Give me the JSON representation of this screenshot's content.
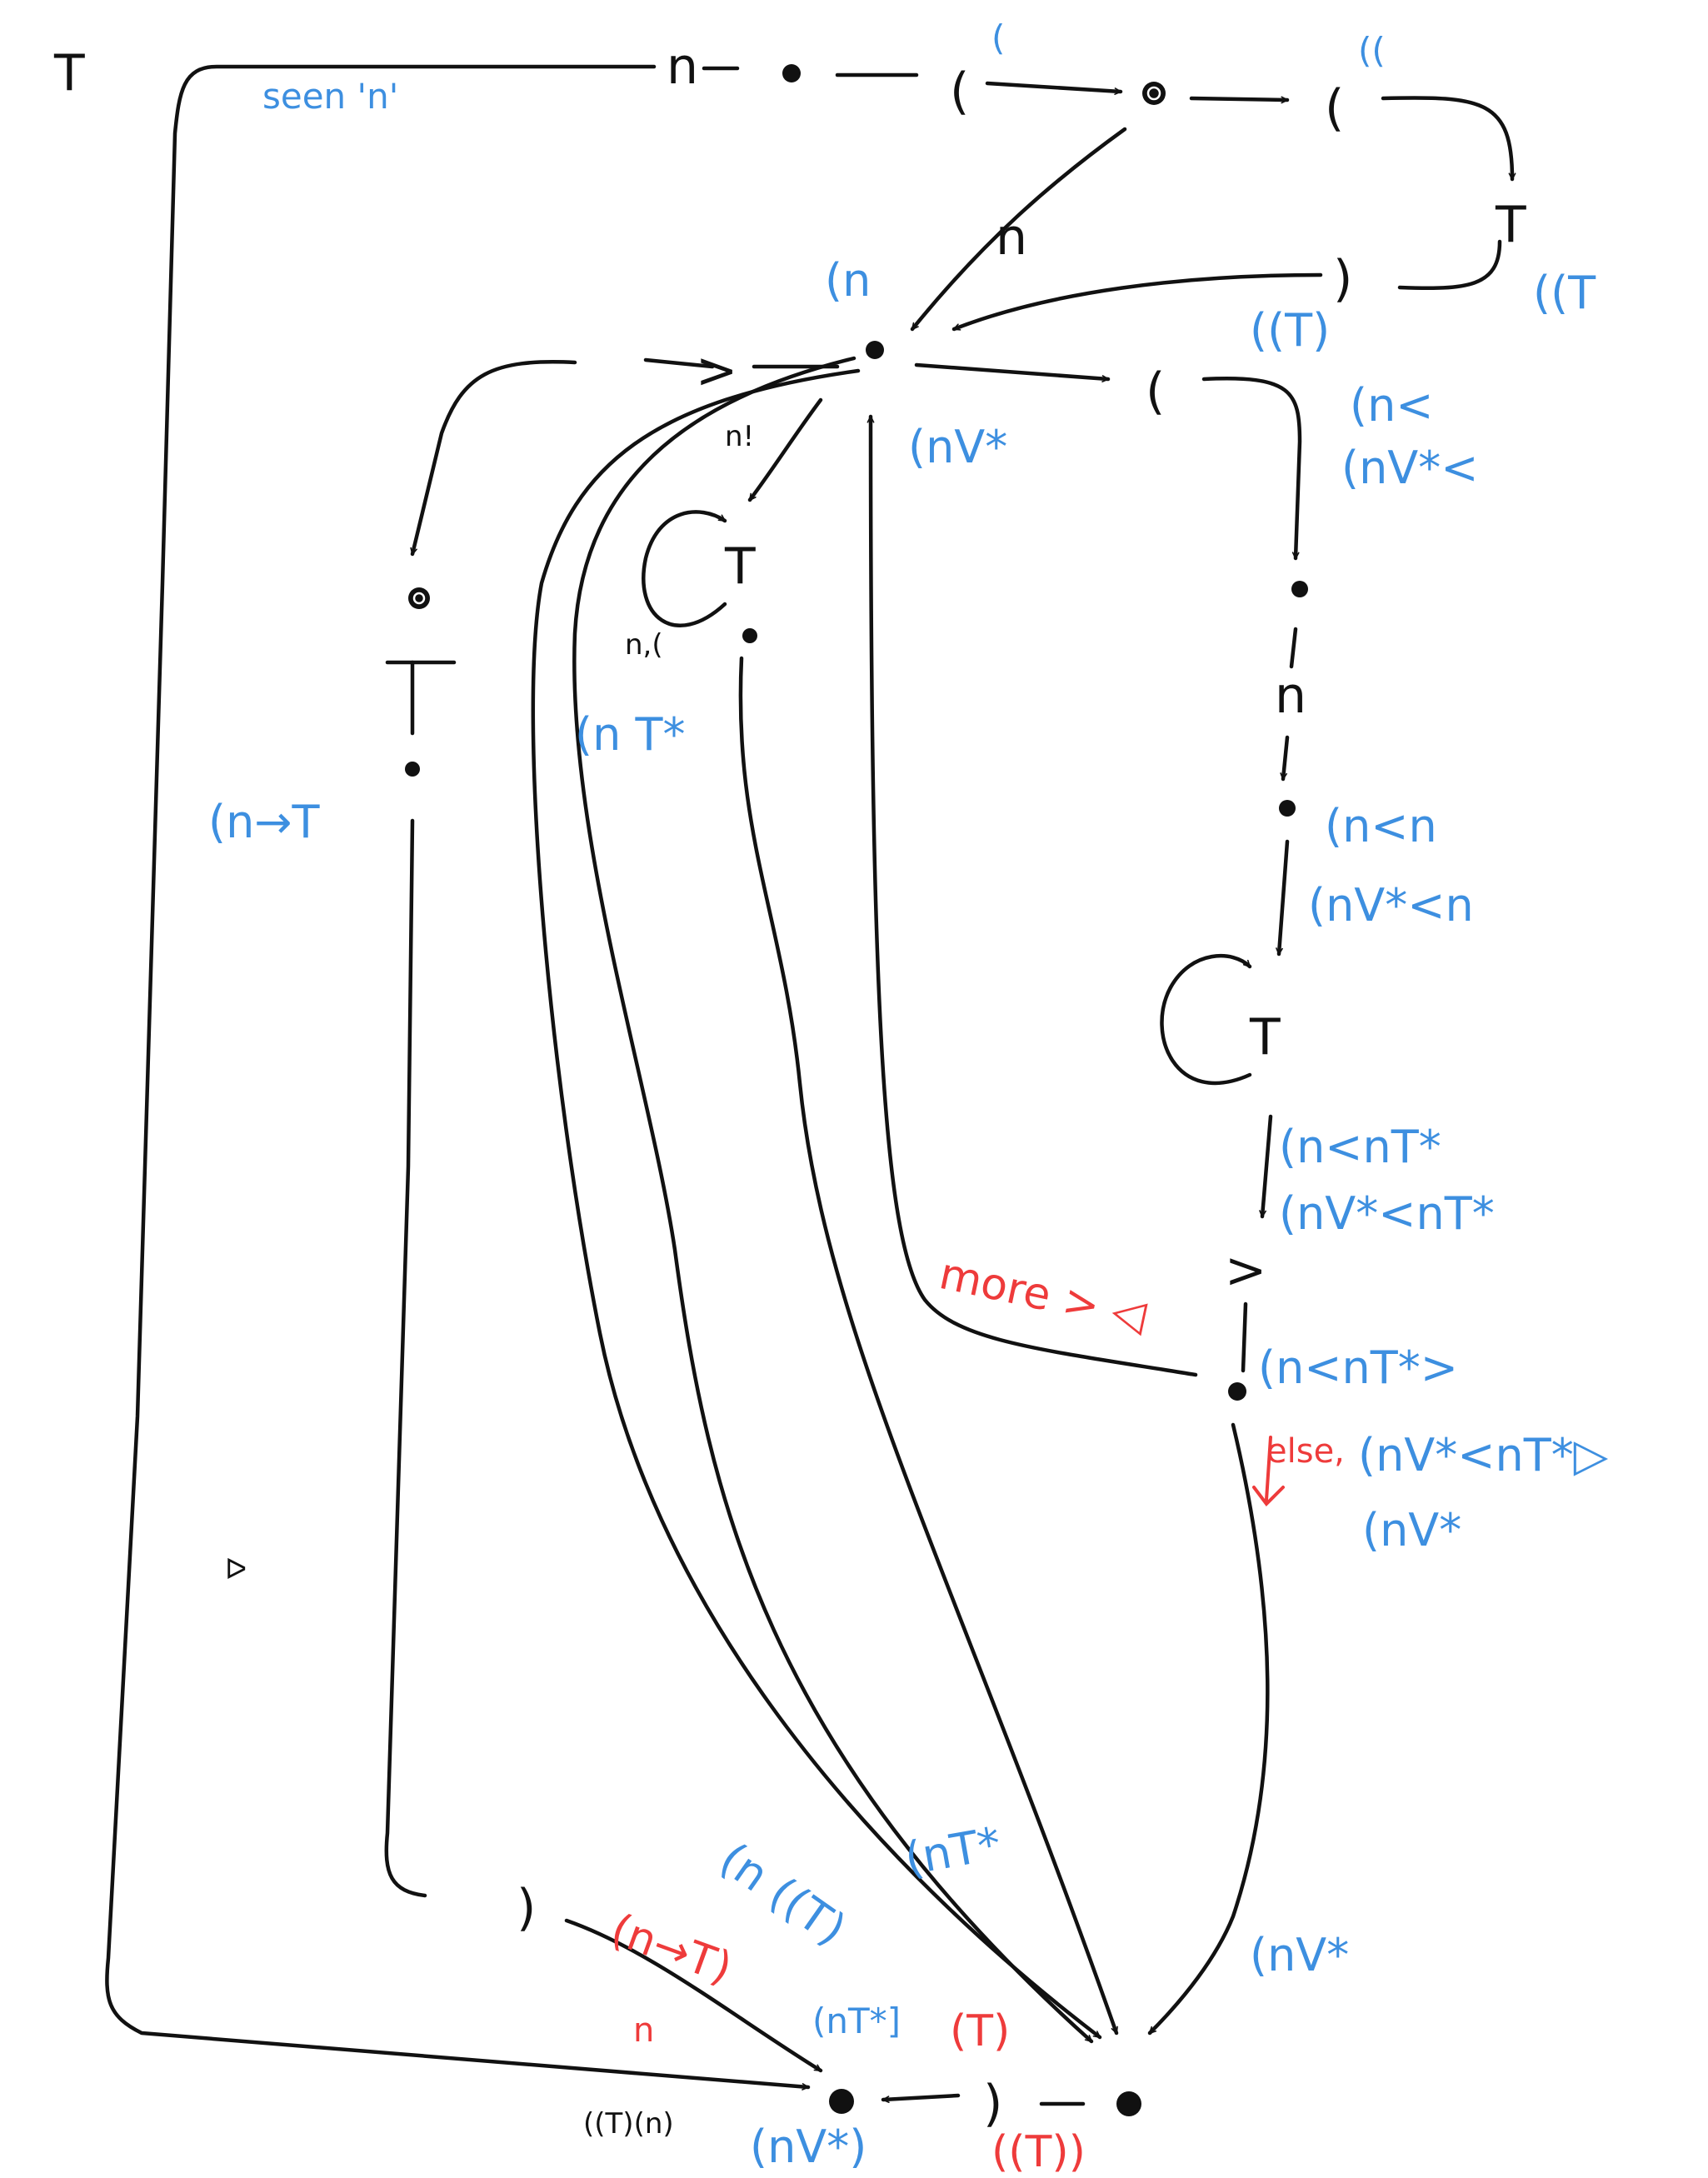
{
  "colors": {
    "ink": "#111111",
    "blue_annotation": "#3d8fe0",
    "red_annotation": "#ee3b3b"
  },
  "symbols": {
    "T": "T",
    "n": "n",
    "open": "(",
    "open_top": "(",
    "close": ")",
    "gt": ">",
    "lt": "<",
    "n_bang": "n!",
    "n_comma_open": "n,(",
    "stray_mark": "ᐅ"
  },
  "labels": {
    "seen_n": "seen 'n'",
    "sup_open1": "(",
    "sup_open2": "((",
    "paren_n": "(n",
    "paren_paren_T": "((T",
    "paren_paren_T_close": "((T)",
    "n_v_star": "(nV*",
    "n_lt": "(n<",
    "n_v_star_lt": "(nV*<",
    "n_arrow_T": "(n→T",
    "n_T_star": "(n T*",
    "n_lt_n": "(n<n",
    "n_v_star_lt_n": "(nV*<n",
    "n_lt_nT_star": "(n<nT*",
    "n_v_star_lt_nT_star": "(nV*<nT*",
    "n_lt_nT_star_gt": "(n<nT*>",
    "n_v_star_lt_nT_star_tri": "(nV*<nT*▷",
    "n_v_star_2": "(nV*",
    "n_paren_paren_T": "(n ((T)",
    "n_T_star_2": "(nT*",
    "n_v_star_3": "(nV*",
    "n_v_star_final": "(nV*)",
    "small_stack": "((T)(n)"
  },
  "red_labels": {
    "more_gt": "more > ◁",
    "else": "else,",
    "n_arrow_T_close": "(n→T)",
    "n_T_star_close": "(nT*]",
    "T_close": "(T)",
    "n_red": "n",
    "paren_paren_T_bottom": "((T))"
  }
}
